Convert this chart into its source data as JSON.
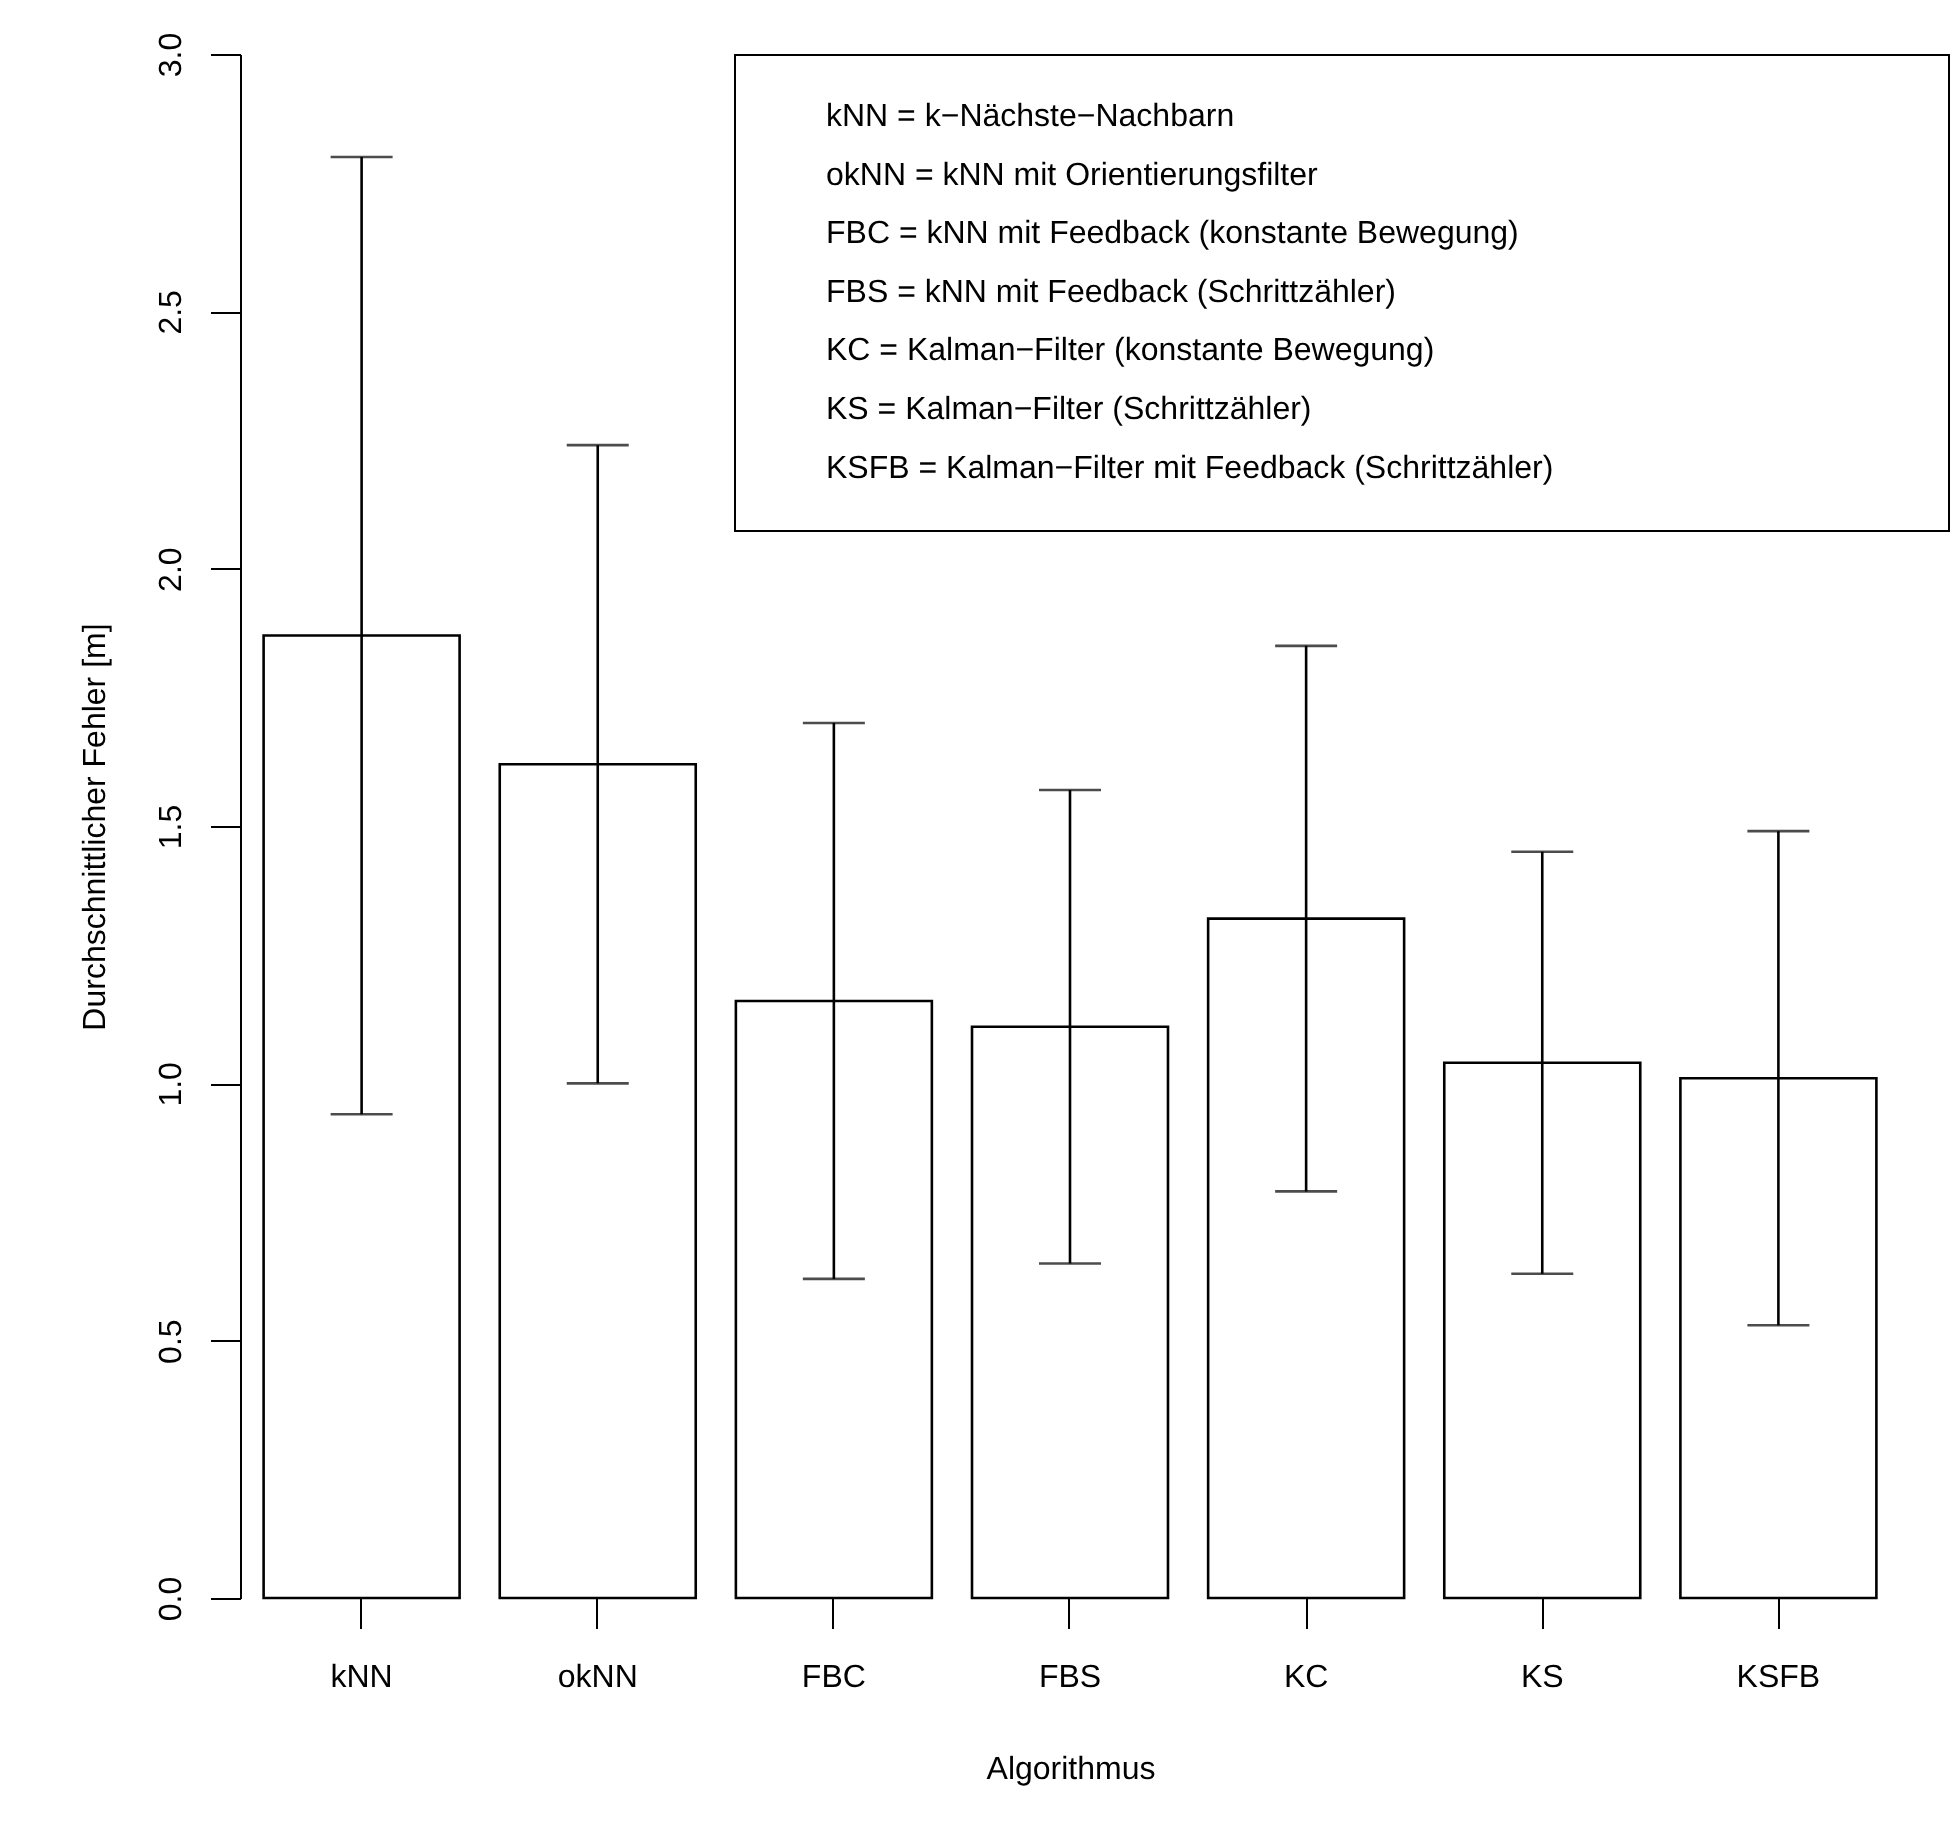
{
  "chart_data": {
    "type": "bar",
    "xlabel": "Algorithmus",
    "ylabel": "Durchschnittlicher Fehler [m]",
    "categories": [
      "kNN",
      "okNN",
      "FBC",
      "FBS",
      "KC",
      "KS",
      "KSFB"
    ],
    "values": [
      1.87,
      1.62,
      1.16,
      1.11,
      1.32,
      1.04,
      1.01
    ],
    "errors": [
      0.93,
      0.62,
      0.54,
      0.46,
      0.53,
      0.41,
      0.48
    ],
    "color": "#ffffff",
    "ylim": [
      0,
      3
    ],
    "yticks": [
      {
        "value": 0,
        "label": "0.0"
      },
      {
        "value": 0.5,
        "label": "0.5"
      },
      {
        "value": 1,
        "label": "1.0"
      },
      {
        "value": 1.5,
        "label": "1.5"
      },
      {
        "value": 2,
        "label": "2.0"
      },
      {
        "value": 2.5,
        "label": "2.5"
      },
      {
        "value": 3,
        "label": "3.0"
      }
    ],
    "grid": false,
    "annotations": [
      "kNN = k−Nächste−Nachbarn",
      "okNN = kNN mit Orientierungsfilter",
      "FBC = kNN mit Feedback (konstante Bewegung)",
      "FBS = kNN mit Feedback (Schrittzähler)",
      "KC = Kalman−Filter (konstante Bewegung)",
      "KS = Kalman−Filter (Schrittzähler)",
      "KSFB = Kalman−Filter mit Feedback (Schrittzähler)"
    ]
  }
}
